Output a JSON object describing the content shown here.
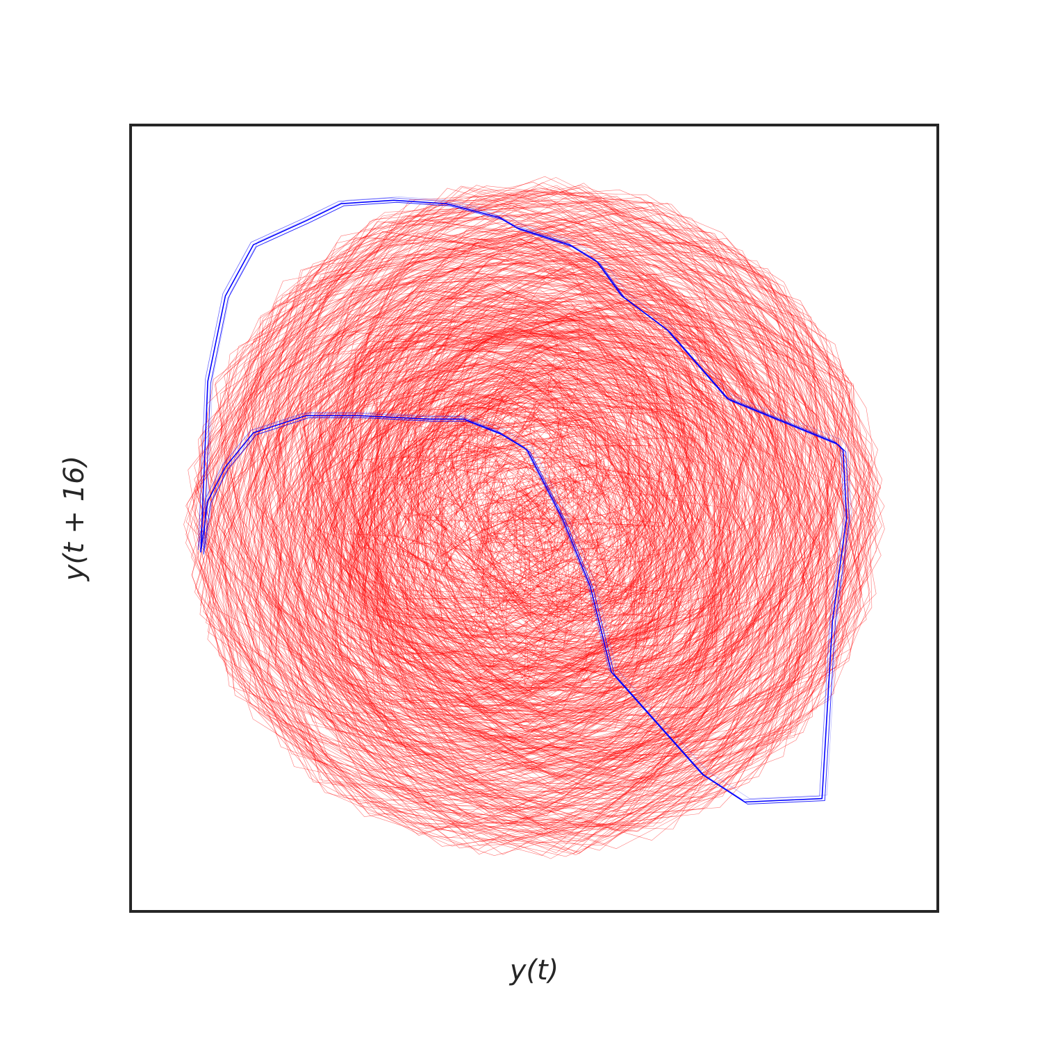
{
  "chart_data": {
    "type": "line",
    "xlabel": "y(t)",
    "ylabel": "y(t + 16)",
    "xlim": [
      -1.15,
      1.15
    ],
    "ylim": [
      -1.15,
      1.15
    ],
    "ticks_shown": false,
    "grid": false,
    "legend": "none",
    "series": [
      {
        "style": "thin noisy trajectory",
        "color": "#ff0000",
        "points": 6000,
        "x_range": [
          -1.05,
          1.05
        ],
        "y_range": [
          -1.05,
          1.05
        ]
      },
      {
        "style": "attractor trajectory",
        "color": "#0000ff",
        "x": [
          -0.95,
          -0.93,
          -0.88,
          -0.8,
          -0.65,
          -0.5,
          -0.3,
          -0.2,
          -0.1,
          -0.02,
          0.08,
          0.16,
          0.22,
          0.35,
          0.48,
          0.6,
          0.82,
          0.85,
          0.89,
          0.88,
          0.86,
          0.55,
          0.38,
          0.25,
          0.18,
          0.1,
          -0.05,
          -0.1,
          -0.25,
          -0.4,
          -0.55,
          -0.65,
          -0.8,
          -0.88,
          -0.93,
          -0.95
        ],
        "y": [
          -0.1,
          0.05,
          0.15,
          0.25,
          0.3,
          0.3,
          0.29,
          0.29,
          0.25,
          0.2,
          0.0,
          -0.2,
          -0.45,
          -0.6,
          -0.75,
          -0.83,
          -0.82,
          -0.3,
          0.0,
          0.2,
          0.22,
          0.35,
          0.55,
          0.65,
          0.75,
          0.8,
          0.85,
          0.88,
          0.92,
          0.93,
          0.92,
          0.87,
          0.8,
          0.65,
          0.4,
          -0.1
        ]
      }
    ]
  }
}
